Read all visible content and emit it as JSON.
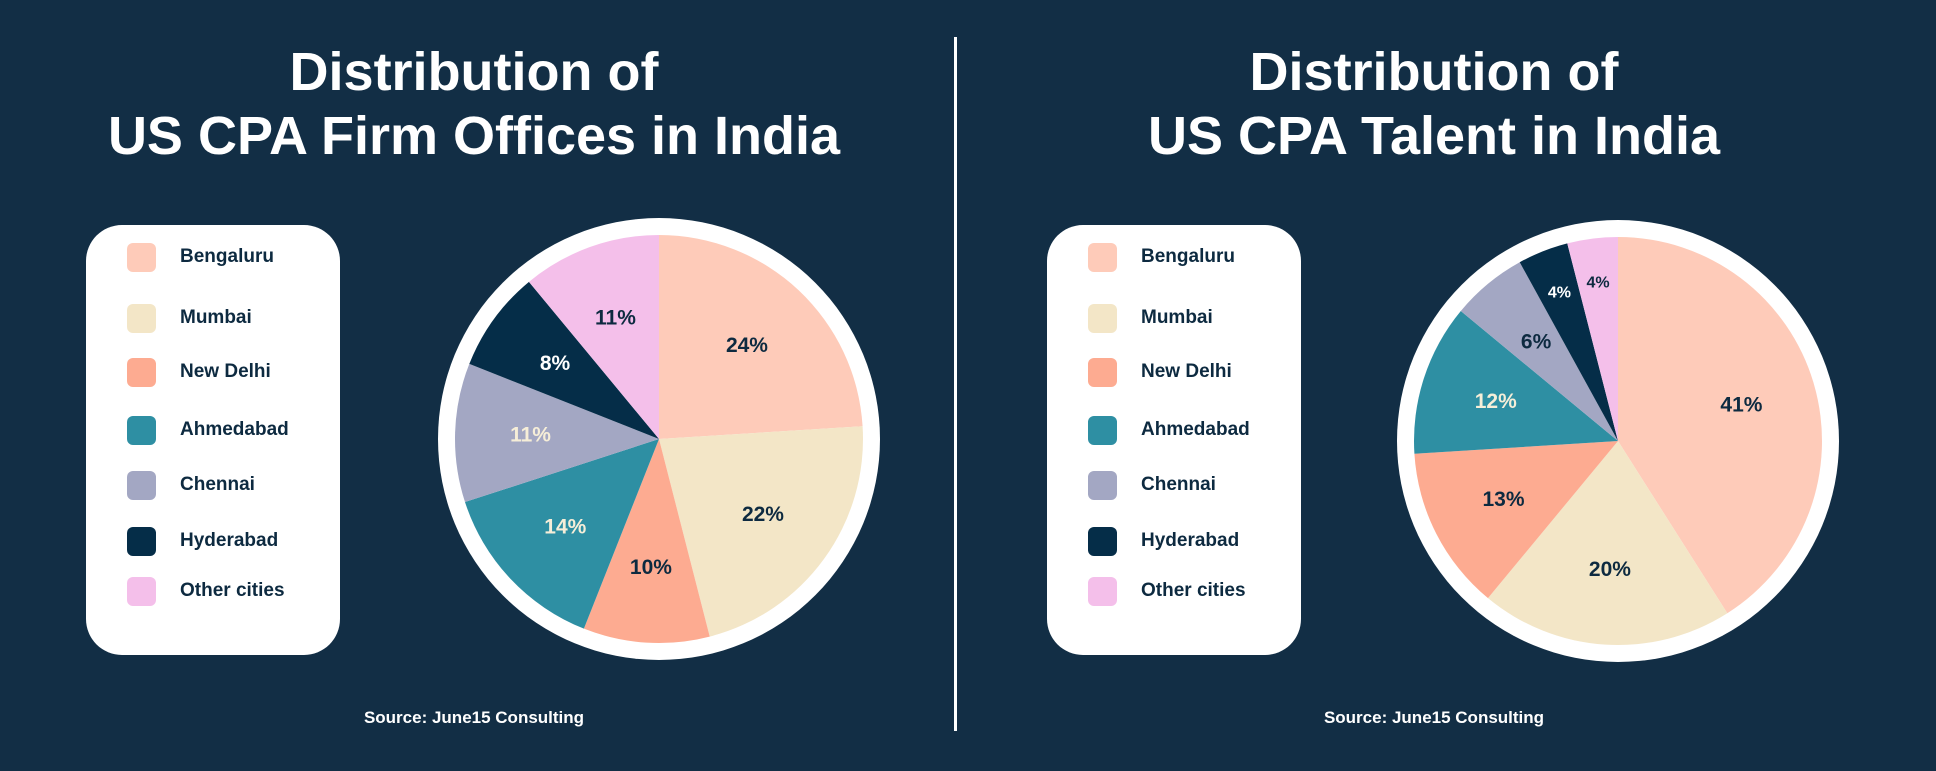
{
  "chart_data": [
    {
      "type": "pie",
      "title": [
        "Distribution of",
        "US CPA Firm Offices in India"
      ],
      "categories": [
        "Bengaluru",
        "Mumbai",
        "New Delhi",
        "Ahmedabad",
        "Chennai",
        "Hyderabad",
        "Other cities"
      ],
      "values": [
        24,
        22,
        10,
        14,
        11,
        8,
        11
      ],
      "labels": [
        "24%",
        "22%",
        "10%",
        "14%",
        "11%",
        "8%",
        "11%"
      ],
      "colors": [
        "#fecbb9",
        "#f3e6c7",
        "#fdab91",
        "#2e8fa3",
        "#a3a7c3",
        "#052d48",
        "#f4bfea"
      ],
      "label_colors": [
        "#0d2a40",
        "#0d2a40",
        "#0d2a40",
        "#f6eed8",
        "#f6eed8",
        "#ffffff",
        "#0d2a40"
      ],
      "legend": "left",
      "source": "Source: June15 Consulting"
    },
    {
      "type": "pie",
      "title": [
        "Distribution of",
        "US CPA Talent in India"
      ],
      "categories": [
        "Bengaluru",
        "Mumbai",
        "New Delhi",
        "Ahmedabad",
        "Chennai",
        "Hyderabad",
        "Other cities"
      ],
      "values": [
        41,
        20,
        13,
        12,
        6,
        4,
        4
      ],
      "labels": [
        "41%",
        "20%",
        "13%",
        "12%",
        "6%",
        "4%",
        "4%"
      ],
      "colors": [
        "#fecbb9",
        "#f3e6c7",
        "#fdab91",
        "#2e8fa3",
        "#a3a7c3",
        "#052d48",
        "#f4bfea"
      ],
      "label_colors": [
        "#0d2a40",
        "#0d2a40",
        "#0d2a40",
        "#f6eed8",
        "#0d2a40",
        "#ffffff",
        "#0d2a40"
      ],
      "legend": "left",
      "source": "Source: June15 Consulting"
    }
  ],
  "background": "#122e45"
}
